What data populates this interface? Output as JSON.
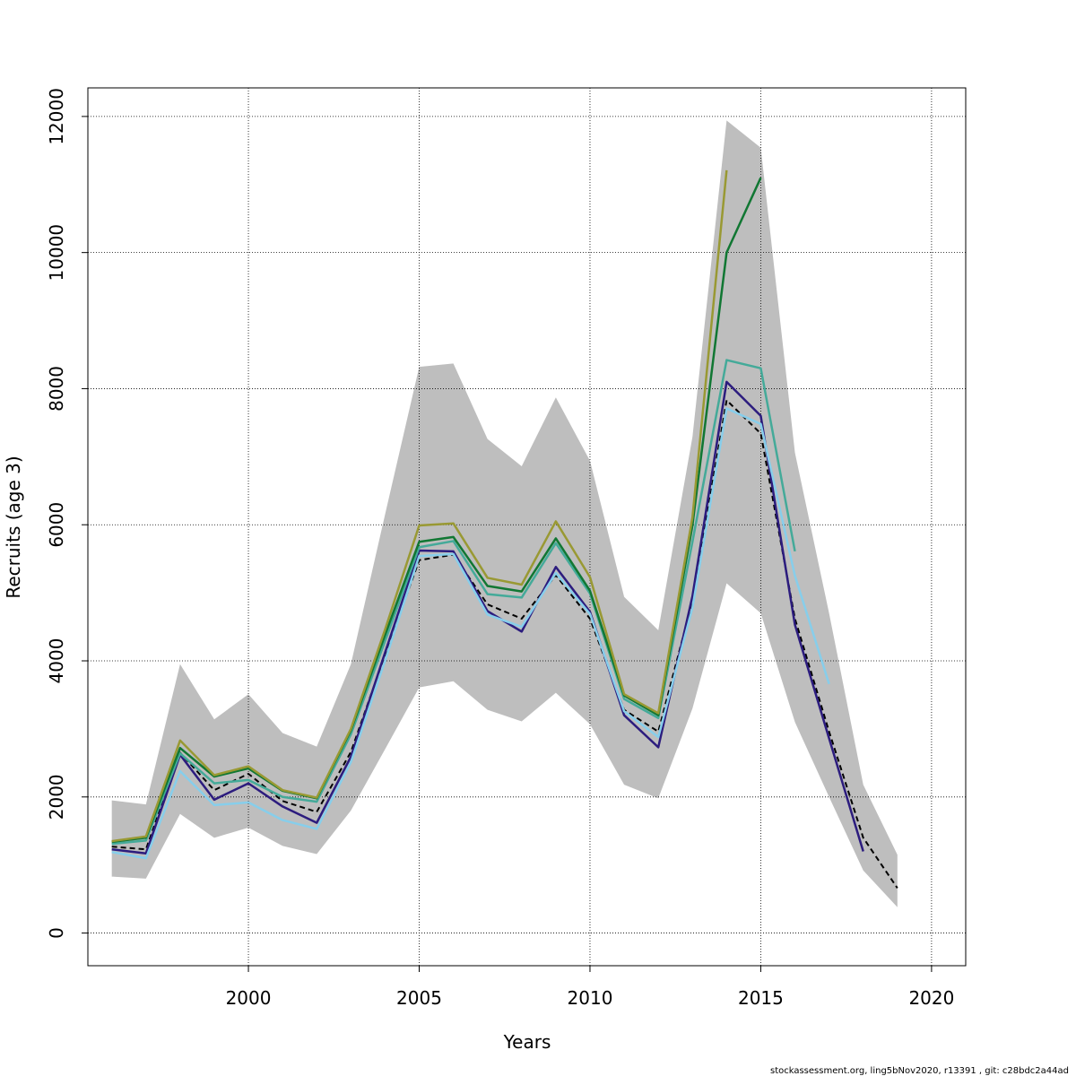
{
  "chart_data": {
    "type": "line",
    "xlabel": "Years",
    "ylabel": "Recruits (age 3)",
    "xlim": [
      1995.3,
      2021.0
    ],
    "ylim": [
      -480,
      12420
    ],
    "x_ticks": [
      2000,
      2005,
      2010,
      2015,
      2020
    ],
    "y_ticks": [
      0,
      2000,
      4000,
      6000,
      8000,
      10000,
      12000
    ],
    "grid": true,
    "grid_style": "dotted",
    "uncertainty_band": {
      "color": "#bebebe",
      "x": [
        1996,
        1997,
        1998,
        1999,
        2000,
        2001,
        2002,
        2003,
        2004,
        2005,
        2006,
        2007,
        2008,
        2009,
        2010,
        2011,
        2012,
        2013,
        2014,
        2015,
        2016,
        2017,
        2018,
        2019
      ],
      "upper": [
        1950,
        1890,
        3950,
        3140,
        3510,
        2940,
        2740,
        3950,
        6150,
        8320,
        8370,
        7260,
        6860,
        7870,
        6940,
        4940,
        4450,
        7290,
        11940,
        11540,
        7060,
        4700,
        2180,
        1150
      ],
      "lower": [
        830,
        800,
        1750,
        1400,
        1550,
        1280,
        1160,
        1800,
        2700,
        3610,
        3700,
        3280,
        3110,
        3530,
        3070,
        2180,
        1980,
        3300,
        5140,
        4700,
        3100,
        2000,
        920,
        380
      ]
    },
    "series": [
      {
        "color": "#000000",
        "dash": "dashed",
        "x": [
          1996,
          1997,
          1998,
          1999,
          2000,
          2001,
          2002,
          2003,
          2004,
          2005,
          2006,
          2007,
          2008,
          2009,
          2010,
          2011,
          2012,
          2013,
          2014,
          2015,
          2016,
          2017,
          2018,
          2019
        ],
        "values": [
          1270,
          1230,
          2650,
          2100,
          2340,
          1940,
          1780,
          2660,
          4090,
          5480,
          5560,
          4830,
          4620,
          5260,
          4620,
          3280,
          2960,
          4880,
          7830,
          7340,
          4620,
          2960,
          1400,
          660
        ]
      },
      {
        "color": "#2c1c7e",
        "dash": "solid",
        "x": [
          1996,
          1997,
          1998,
          1999,
          2000,
          2001,
          2002,
          2003,
          2004,
          2005,
          2006,
          2007,
          2008,
          2009,
          2010,
          2011,
          2012,
          2013,
          2014,
          2015,
          2016,
          2017,
          2018
        ],
        "values": [
          1230,
          1170,
          2620,
          1960,
          2200,
          1860,
          1620,
          2590,
          4120,
          5620,
          5610,
          4730,
          4430,
          5380,
          4720,
          3200,
          2730,
          4950,
          8100,
          7600,
          4530,
          2860,
          1200
        ]
      },
      {
        "color": "#87ceeb",
        "dash": "solid",
        "x": [
          1996,
          1997,
          1998,
          1999,
          2000,
          2001,
          2002,
          2003,
          2004,
          2005,
          2006,
          2007,
          2008,
          2009,
          2010,
          2011,
          2012,
          2013,
          2014,
          2015,
          2016,
          2017
        ],
        "values": [
          1190,
          1100,
          2380,
          1880,
          1920,
          1660,
          1530,
          2510,
          4000,
          5540,
          5570,
          4680,
          4500,
          5290,
          4690,
          3260,
          2880,
          4780,
          7710,
          7480,
          5250,
          3660
        ]
      },
      {
        "color": "#44aa99",
        "dash": "solid",
        "x": [
          1996,
          1997,
          1998,
          1999,
          2000,
          2001,
          2002,
          2003,
          2004,
          2005,
          2006,
          2007,
          2008,
          2009,
          2010,
          2011,
          2012,
          2013,
          2014,
          2015,
          2016
        ],
        "values": [
          1310,
          1360,
          2640,
          2200,
          2250,
          2000,
          1930,
          2920,
          4290,
          5670,
          5760,
          4980,
          4930,
          5730,
          4990,
          3440,
          3160,
          5750,
          8420,
          8300,
          5610
        ]
      },
      {
        "color": "#117733",
        "dash": "solid",
        "x": [
          1996,
          1997,
          1998,
          1999,
          2000,
          2001,
          2002,
          2003,
          2004,
          2005,
          2006,
          2007,
          2008,
          2009,
          2010,
          2011,
          2012,
          2013,
          2014,
          2015
        ],
        "values": [
          1340,
          1400,
          2720,
          2300,
          2420,
          2090,
          1980,
          2980,
          4380,
          5750,
          5820,
          5100,
          5020,
          5800,
          5030,
          3490,
          3200,
          5990,
          10000,
          11100
        ]
      },
      {
        "color": "#999933",
        "dash": "solid",
        "x": [
          1996,
          1997,
          1998,
          1999,
          2000,
          2001,
          2002,
          2003,
          2004,
          2005,
          2006,
          2007,
          2008,
          2009,
          2010,
          2011,
          2012,
          2013,
          2014
        ],
        "values": [
          1350,
          1420,
          2830,
          2320,
          2450,
          2100,
          1990,
          3000,
          4460,
          5990,
          6020,
          5220,
          5120,
          6050,
          5230,
          3510,
          3230,
          6110,
          11210
        ]
      }
    ]
  },
  "footer": "stockassessment.org, ling5bNov2020, r13391 , git: c28bdc2a44ad"
}
